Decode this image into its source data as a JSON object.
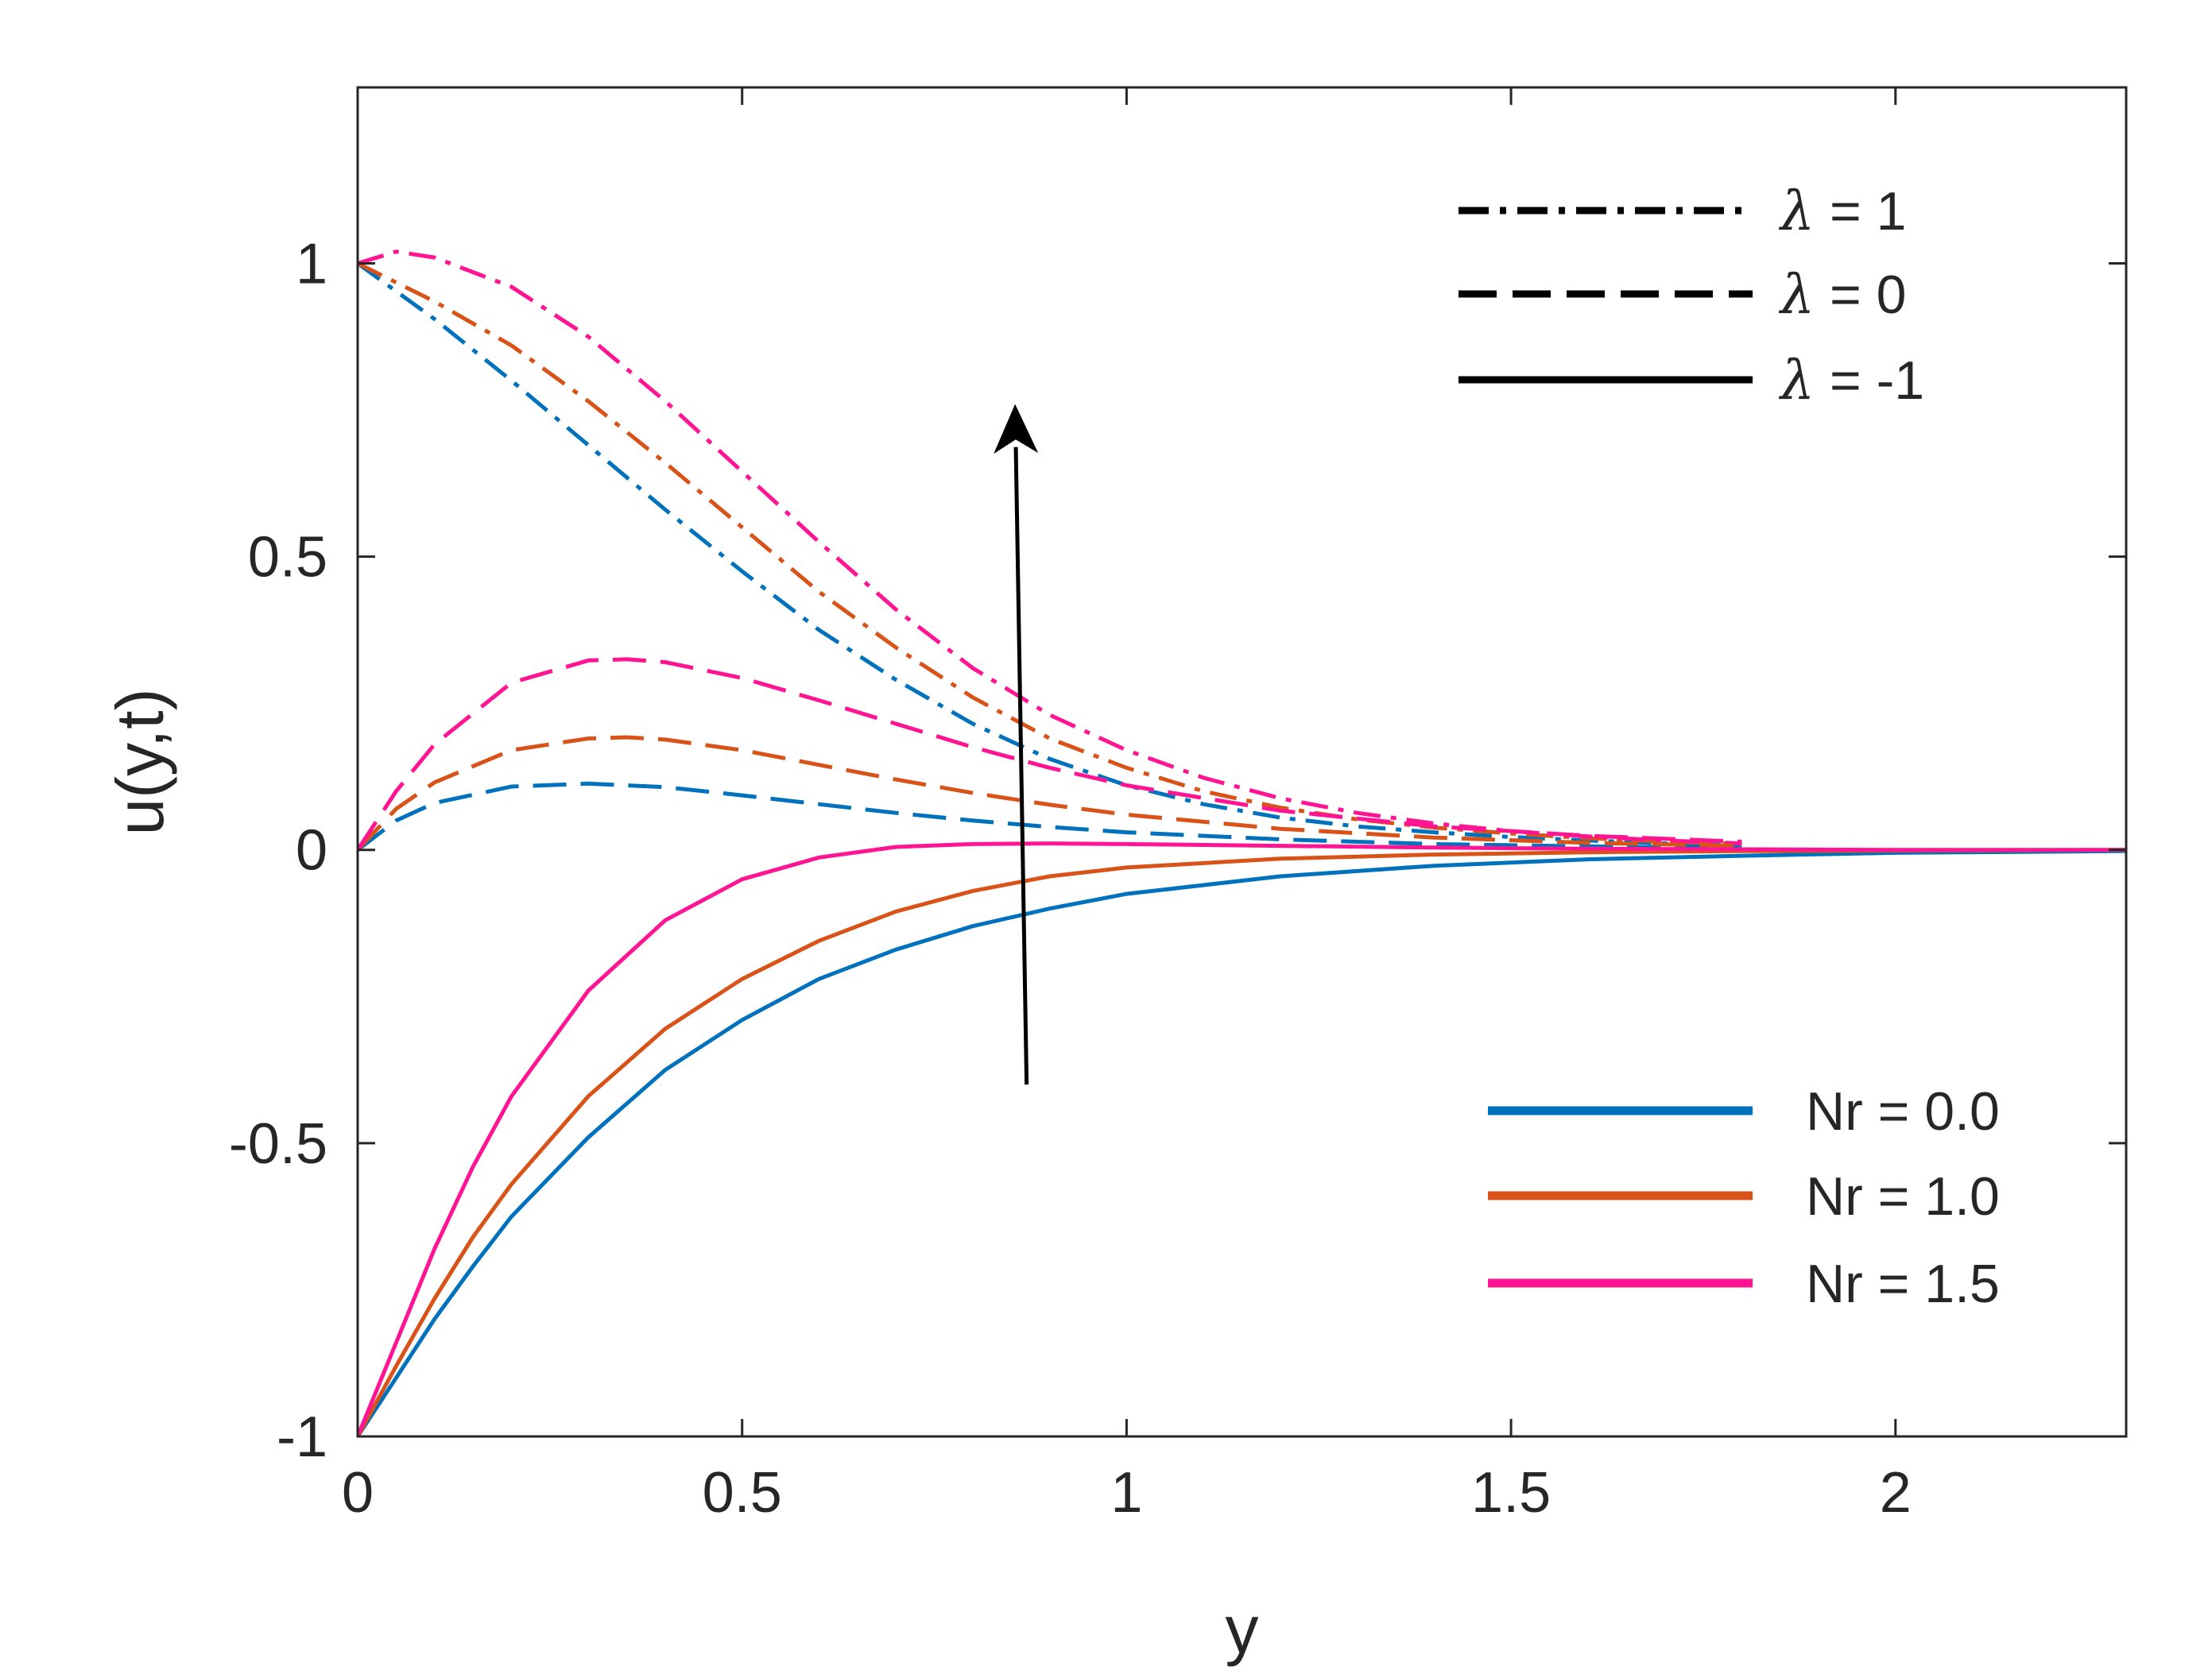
{
  "chart_data": {
    "type": "line",
    "title": "",
    "xlabel": "y",
    "ylabel": "u(y,t)",
    "xlim": [
      0,
      2.3
    ],
    "ylim": [
      -1,
      1.3
    ],
    "xticks": [
      0,
      0.5,
      1,
      1.5,
      2
    ],
    "xtick_labels": [
      "0",
      "0.5",
      "1",
      "1.5",
      "2"
    ],
    "yticks": [
      -1,
      -0.5,
      0,
      0.5,
      1
    ],
    "ytick_labels": [
      "-1",
      "-0.5",
      "0",
      "0.5",
      "1"
    ],
    "grid": false,
    "box": true,
    "colors": {
      "Nr = 0.0": "#0072BD",
      "Nr = 1.0": "#D95319",
      "Nr = 1.5": "#FF1493",
      "axis": "#262626",
      "arrow": "#000000"
    },
    "legend_styles": {
      "position": "top-right",
      "entries": [
        {
          "style": "dashdot",
          "label_symbol": "λ",
          "label_rest": " = 1"
        },
        {
          "style": "dashed",
          "label_symbol": "λ",
          "label_rest": " = 0"
        },
        {
          "style": "solid",
          "label_symbol": "λ",
          "label_rest": " = -1"
        }
      ]
    },
    "legend_colors": {
      "position": "bottom-right",
      "entries": [
        "Nr = 0.0",
        "Nr = 1.0",
        "Nr = 1.5"
      ]
    },
    "annotation_arrow": {
      "from": [
        0.87,
        -0.4
      ],
      "to": [
        0.855,
        0.76
      ],
      "meaning": "increasing Nr"
    },
    "series": [
      {
        "color_key": "Nr = 0.0",
        "style": "dashdot",
        "x": [
          0,
          0.1,
          0.2,
          0.3,
          0.4,
          0.5,
          0.6,
          0.7,
          0.8,
          0.9,
          1.0,
          1.1,
          1.2,
          1.3,
          1.4,
          1.5,
          1.6,
          1.7,
          1.8
        ],
        "y": [
          1.0,
          0.905,
          0.8,
          0.69,
          0.58,
          0.475,
          0.375,
          0.29,
          0.215,
          0.155,
          0.11,
          0.078,
          0.055,
          0.04,
          0.03,
          0.022,
          0.016,
          0.011,
          0.008
        ]
      },
      {
        "color_key": "Nr = 1.0",
        "style": "dashdot",
        "x": [
          0,
          0.1,
          0.2,
          0.3,
          0.4,
          0.5,
          0.6,
          0.7,
          0.8,
          0.9,
          1.0,
          1.1,
          1.2,
          1.3,
          1.4,
          1.5,
          1.6,
          1.7,
          1.8
        ],
        "y": [
          1.0,
          0.935,
          0.86,
          0.765,
          0.66,
          0.55,
          0.44,
          0.345,
          0.26,
          0.19,
          0.14,
          0.1,
          0.072,
          0.052,
          0.038,
          0.028,
          0.02,
          0.014,
          0.01
        ]
      },
      {
        "color_key": "Nr = 1.5",
        "style": "dashdot",
        "x": [
          0,
          0.05,
          0.1,
          0.2,
          0.3,
          0.4,
          0.5,
          0.6,
          0.7,
          0.8,
          0.9,
          1.0,
          1.1,
          1.2,
          1.3,
          1.4,
          1.5,
          1.6,
          1.7,
          1.8
        ],
        "y": [
          1.0,
          1.02,
          1.01,
          0.96,
          0.875,
          0.765,
          0.645,
          0.525,
          0.41,
          0.31,
          0.23,
          0.17,
          0.123,
          0.088,
          0.063,
          0.045,
          0.032,
          0.023,
          0.016,
          0.011
        ]
      },
      {
        "color_key": "Nr = 0.0",
        "style": "dashed",
        "x": [
          0,
          0.05,
          0.1,
          0.2,
          0.3,
          0.4,
          0.5,
          0.6,
          0.7,
          0.8,
          0.9,
          1.0,
          1.2,
          1.4,
          1.6,
          1.8
        ],
        "y": [
          0.0,
          0.05,
          0.08,
          0.108,
          0.113,
          0.107,
          0.093,
          0.078,
          0.063,
          0.05,
          0.039,
          0.03,
          0.018,
          0.01,
          0.006,
          0.003
        ]
      },
      {
        "color_key": "Nr = 1.0",
        "style": "dashed",
        "x": [
          0,
          0.05,
          0.1,
          0.2,
          0.3,
          0.35,
          0.4,
          0.5,
          0.6,
          0.7,
          0.8,
          0.9,
          1.0,
          1.2,
          1.4,
          1.6,
          1.8
        ],
        "y": [
          0.0,
          0.07,
          0.115,
          0.17,
          0.19,
          0.192,
          0.188,
          0.17,
          0.145,
          0.12,
          0.097,
          0.077,
          0.06,
          0.036,
          0.021,
          0.012,
          0.007
        ]
      },
      {
        "color_key": "Nr = 1.5",
        "style": "dashed",
        "x": [
          0,
          0.05,
          0.1,
          0.2,
          0.3,
          0.35,
          0.4,
          0.5,
          0.6,
          0.7,
          0.8,
          0.9,
          1.0,
          1.2,
          1.4,
          1.6,
          1.8
        ],
        "y": [
          0.0,
          0.1,
          0.18,
          0.285,
          0.323,
          0.325,
          0.32,
          0.293,
          0.255,
          0.215,
          0.175,
          0.14,
          0.11,
          0.067,
          0.04,
          0.024,
          0.014
        ]
      },
      {
        "color_key": "Nr = 0.0",
        "style": "solid",
        "x": [
          0,
          0.05,
          0.1,
          0.15,
          0.2,
          0.3,
          0.4,
          0.5,
          0.6,
          0.7,
          0.8,
          0.9,
          1.0,
          1.2,
          1.4,
          1.6,
          1.8,
          2.0,
          2.3
        ],
        "y": [
          -1.0,
          -0.9,
          -0.8,
          -0.71,
          -0.625,
          -0.49,
          -0.375,
          -0.29,
          -0.22,
          -0.17,
          -0.13,
          -0.1,
          -0.075,
          -0.045,
          -0.027,
          -0.016,
          -0.01,
          -0.005,
          -0.002
        ]
      },
      {
        "color_key": "Nr = 1.0",
        "style": "solid",
        "x": [
          0,
          0.05,
          0.1,
          0.15,
          0.2,
          0.3,
          0.4,
          0.5,
          0.6,
          0.7,
          0.8,
          0.9,
          1.0,
          1.2,
          1.4,
          1.6,
          1.8,
          2.0,
          2.3
        ],
        "y": [
          -1.0,
          -0.88,
          -0.765,
          -0.66,
          -0.57,
          -0.42,
          -0.305,
          -0.22,
          -0.155,
          -0.105,
          -0.07,
          -0.045,
          -0.03,
          -0.015,
          -0.008,
          -0.004,
          -0.002,
          -0.001,
          0.0
        ]
      },
      {
        "color_key": "Nr = 1.5",
        "style": "solid",
        "x": [
          0,
          0.05,
          0.1,
          0.15,
          0.2,
          0.3,
          0.4,
          0.5,
          0.6,
          0.7,
          0.8,
          0.9,
          1.0,
          1.2,
          1.4,
          1.6,
          1.8,
          2.0,
          2.3
        ],
        "y": [
          -1.0,
          -0.84,
          -0.68,
          -0.54,
          -0.42,
          -0.24,
          -0.12,
          -0.05,
          -0.013,
          0.005,
          0.01,
          0.011,
          0.01,
          0.007,
          0.004,
          0.002,
          0.001,
          0.0,
          0.0
        ]
      }
    ]
  }
}
